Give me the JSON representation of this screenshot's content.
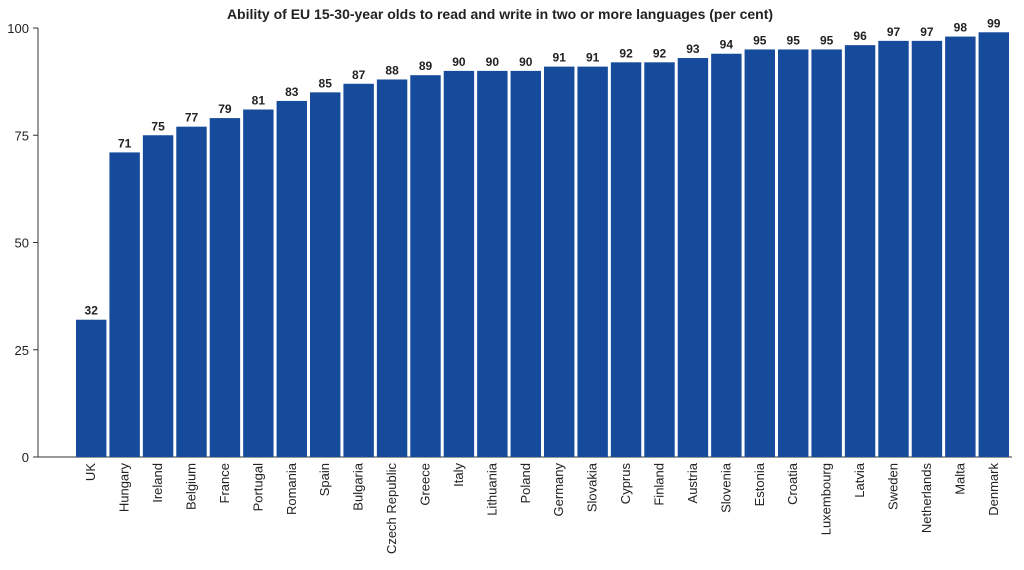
{
  "chart_data": {
    "type": "bar",
    "title": "Ability of EU 15-30-year olds to read and write in two or more languages (per cent)",
    "xlabel": "",
    "ylabel": "",
    "ylim": [
      0,
      100
    ],
    "yticks": [
      0,
      25,
      50,
      75,
      100
    ],
    "grid": false,
    "bar_color": "#164b9b",
    "categories": [
      "UK",
      "Hungary",
      "Ireland",
      "Belgium",
      "France",
      "Portugal",
      "Romania",
      "Spain",
      "Bulgaria",
      "Czech Republic",
      "Greece",
      "Italy",
      "Lithuania",
      "Poland",
      "Germany",
      "Slovakia",
      "Cyprus",
      "Finland",
      "Austria",
      "Slovenia",
      "Estonia",
      "Croatia",
      "Luxembourg",
      "Latvia",
      "Sweden",
      "Netherlands",
      "Malta",
      "Denmark"
    ],
    "values": [
      32,
      71,
      75,
      77,
      79,
      81,
      83,
      85,
      87,
      88,
      89,
      90,
      90,
      90,
      91,
      91,
      92,
      92,
      93,
      94,
      95,
      95,
      95,
      96,
      97,
      97,
      98,
      99
    ]
  }
}
